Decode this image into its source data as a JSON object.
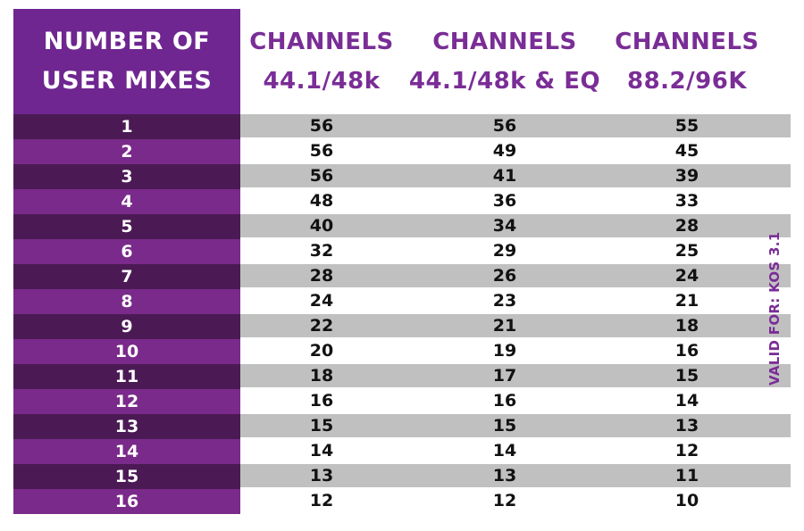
{
  "header": {
    "first_col_line1": "NUMBER OF",
    "first_col_line2": "USER MIXES",
    "col1_line1": "CHANNELS",
    "col1_line2": "44.1/48k",
    "col2_line1": "CHANNELS",
    "col2_line2": "44.1/48k & EQ",
    "col3_line1": "CHANNELS",
    "col3_line2": "88.2/96K"
  },
  "rows": [
    {
      "mixes": "1",
      "c1": "56",
      "c2": "56",
      "c3": "55"
    },
    {
      "mixes": "2",
      "c1": "56",
      "c2": "49",
      "c3": "45"
    },
    {
      "mixes": "3",
      "c1": "56",
      "c2": "41",
      "c3": "39"
    },
    {
      "mixes": "4",
      "c1": "48",
      "c2": "36",
      "c3": "33"
    },
    {
      "mixes": "5",
      "c1": "40",
      "c2": "34",
      "c3": "28"
    },
    {
      "mixes": "6",
      "c1": "32",
      "c2": "29",
      "c3": "25"
    },
    {
      "mixes": "7",
      "c1": "28",
      "c2": "26",
      "c3": "24"
    },
    {
      "mixes": "8",
      "c1": "24",
      "c2": "23",
      "c3": "21"
    },
    {
      "mixes": "9",
      "c1": "22",
      "c2": "21",
      "c3": "18"
    },
    {
      "mixes": "10",
      "c1": "20",
      "c2": "19",
      "c3": "16"
    },
    {
      "mixes": "11",
      "c1": "18",
      "c2": "17",
      "c3": "15"
    },
    {
      "mixes": "12",
      "c1": "16",
      "c2": "16",
      "c3": "14"
    },
    {
      "mixes": "13",
      "c1": "15",
      "c2": "15",
      "c3": "13"
    },
    {
      "mixes": "14",
      "c1": "14",
      "c2": "14",
      "c3": "12"
    },
    {
      "mixes": "15",
      "c1": "13",
      "c2": "13",
      "c3": "11"
    },
    {
      "mixes": "16",
      "c1": "12",
      "c2": "12",
      "c3": "10"
    }
  ],
  "side_note": "VALID FOR: KOS 3.1",
  "colors": {
    "purple_header": "#6f2690",
    "purple_text": "#7a2d96",
    "row_dark_purple": "#4b1a55",
    "row_light_purple": "#7a2a8a",
    "row_gray": "#c0c0c0"
  }
}
